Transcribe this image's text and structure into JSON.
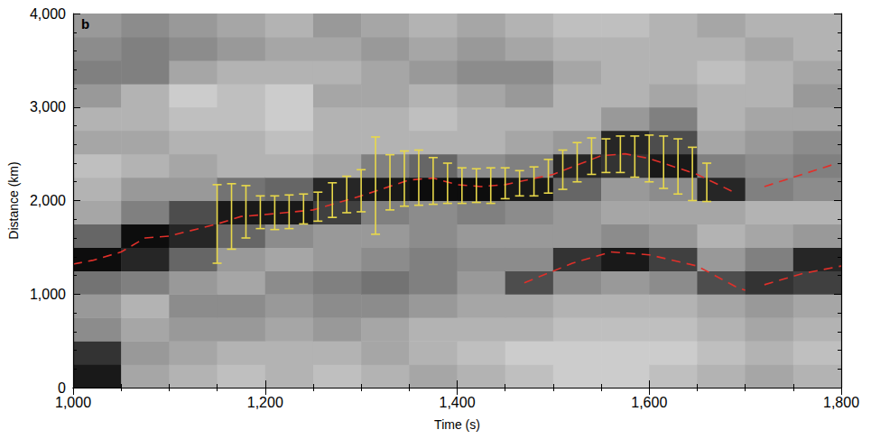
{
  "chart_data": {
    "type": "line",
    "x_label": "Time (s)",
    "y_label": "Distance (km)",
    "annotations": [
      "b"
    ],
    "xlim": [
      1000,
      1800
    ],
    "xticks": [
      1000,
      1200,
      1400,
      1600,
      1800
    ],
    "ylim": [
      0,
      4000
    ],
    "yticks": [
      0,
      1000,
      2000,
      3000,
      4000
    ],
    "grid": false,
    "background": {
      "type": "heatmap",
      "crange": [
        0,
        1
      ],
      "t_edges": [
        1000,
        1050,
        1100,
        1150,
        1200,
        1250,
        1300,
        1350,
        1400,
        1450,
        1500,
        1550,
        1600,
        1650,
        1700,
        1750,
        1800
      ],
      "d_edges": [
        0,
        250,
        500,
        750,
        1000,
        1250,
        1500,
        1750,
        2000,
        2250,
        2500,
        2750,
        3000,
        3250,
        3500,
        3750,
        4000
      ],
      "values": [
        [
          0.9,
          0.8,
          0.45,
          0.4,
          0.55,
          0.95,
          0.6,
          0.35,
          0.3,
          0.25,
          0.35,
          0.3,
          0.4,
          0.5,
          0.45,
          0.4
        ],
        [
          0.35,
          0.4,
          0.35,
          0.3,
          0.5,
          0.85,
          0.95,
          0.5,
          0.4,
          0.3,
          0.35,
          0.3,
          0.3,
          0.5,
          0.5,
          0.45
        ],
        [
          0.3,
          0.35,
          0.4,
          0.45,
          0.4,
          0.6,
          0.85,
          0.7,
          0.4,
          0.35,
          0.3,
          0.25,
          0.2,
          0.35,
          0.45,
          0.4
        ],
        [
          0.25,
          0.3,
          0.4,
          0.45,
          0.35,
          0.4,
          0.6,
          0.9,
          0.55,
          0.3,
          0.3,
          0.25,
          0.25,
          0.3,
          0.4,
          0.35
        ],
        [
          0.3,
          0.3,
          0.35,
          0.4,
          0.45,
          0.35,
          0.45,
          0.9,
          0.6,
          0.3,
          0.25,
          0.2,
          0.2,
          0.3,
          0.35,
          0.3
        ],
        [
          0.25,
          0.3,
          0.4,
          0.45,
          0.5,
          0.4,
          0.4,
          0.75,
          0.85,
          0.35,
          0.3,
          0.3,
          0.35,
          0.3,
          0.35,
          0.4
        ],
        [
          0.3,
          0.35,
          0.35,
          0.45,
          0.55,
          0.45,
          0.4,
          0.5,
          0.9,
          0.5,
          0.3,
          0.3,
          0.35,
          0.35,
          0.4,
          0.35
        ],
        [
          0.35,
          0.3,
          0.3,
          0.4,
          0.5,
          0.5,
          0.45,
          0.45,
          0.95,
          0.6,
          0.3,
          0.25,
          0.3,
          0.4,
          0.35,
          0.3
        ],
        [
          0.3,
          0.25,
          0.3,
          0.35,
          0.4,
          0.45,
          0.4,
          0.5,
          0.95,
          0.45,
          0.3,
          0.3,
          0.35,
          0.45,
          0.4,
          0.35
        ],
        [
          0.25,
          0.2,
          0.3,
          0.35,
          0.7,
          0.45,
          0.4,
          0.45,
          0.9,
          0.5,
          0.35,
          0.3,
          0.4,
          0.45,
          0.35,
          0.3
        ],
        [
          0.2,
          0.2,
          0.25,
          0.3,
          0.45,
          0.8,
          0.4,
          0.4,
          0.6,
          0.85,
          0.4,
          0.3,
          0.3,
          0.35,
          0.3,
          0.25
        ],
        [
          0.2,
          0.2,
          0.25,
          0.3,
          0.4,
          0.9,
          0.45,
          0.35,
          0.4,
          0.8,
          0.85,
          0.4,
          0.3,
          0.3,
          0.3,
          0.25
        ],
        [
          0.25,
          0.2,
          0.25,
          0.3,
          0.45,
          0.75,
          0.4,
          0.35,
          0.45,
          0.9,
          0.7,
          0.5,
          0.35,
          0.3,
          0.3,
          0.3
        ],
        [
          0.3,
          0.25,
          0.3,
          0.35,
          0.7,
          0.4,
          0.3,
          0.35,
          0.85,
          0.5,
          0.35,
          0.3,
          0.3,
          0.25,
          0.3,
          0.35
        ],
        [
          0.35,
          0.3,
          0.35,
          0.4,
          0.8,
          0.5,
          0.35,
          0.3,
          0.5,
          0.45,
          0.4,
          0.35,
          0.3,
          0.3,
          0.35,
          0.3
        ],
        [
          0.3,
          0.25,
          0.3,
          0.35,
          0.75,
          0.85,
          0.4,
          0.3,
          0.45,
          0.5,
          0.45,
          0.35,
          0.4,
          0.35,
          0.3,
          0.3
        ]
      ]
    },
    "series": [
      {
        "color": "#e0302a",
        "line_style": "dashed",
        "x": [
          1000,
          1020,
          1050,
          1075,
          1100,
          1150,
          1175,
          1200,
          1250,
          1300,
          1350,
          1375,
          1400,
          1425,
          1450,
          1500,
          1550,
          1575,
          1600,
          1650,
          1690,
          1705,
          1720,
          1790
        ],
        "values": [
          1320,
          1360,
          1450,
          1600,
          1620,
          1750,
          1830,
          1850,
          1900,
          2050,
          2220,
          2240,
          2170,
          2150,
          2170,
          2280,
          2480,
          2500,
          2450,
          2280,
          2080,
          null,
          2150,
          2380
        ]
      },
      {
        "color": "#e0302a",
        "line_style": "dashed",
        "x": [
          1470,
          1520,
          1560,
          1600,
          1650,
          1690,
          1700,
          1710,
          1720,
          1760,
          1800
        ],
        "values": [
          1120,
          1330,
          1450,
          1420,
          1300,
          1080,
          1040,
          null,
          1100,
          1220,
          1300
        ]
      }
    ],
    "errorbars": {
      "color": "#e8d84a",
      "x": [
        1150,
        1165,
        1180,
        1195,
        1210,
        1225,
        1240,
        1255,
        1270,
        1285,
        1300,
        1315,
        1330,
        1345,
        1360,
        1375,
        1390,
        1405,
        1420,
        1435,
        1450,
        1465,
        1480,
        1495,
        1510,
        1525,
        1540,
        1555,
        1570,
        1585,
        1600,
        1615,
        1630,
        1645,
        1660
      ],
      "low": [
        1330,
        1480,
        1600,
        1700,
        1690,
        1700,
        1750,
        1780,
        1820,
        1870,
        1880,
        1640,
        1900,
        1940,
        1950,
        1960,
        1970,
        1970,
        1980,
        1970,
        2020,
        2050,
        2050,
        2080,
        2120,
        2200,
        2280,
        2300,
        2300,
        2250,
        2200,
        2130,
        2070,
        2000,
        1990
      ],
      "high": [
        2170,
        2180,
        2160,
        2050,
        2050,
        2060,
        2070,
        2090,
        2190,
        2260,
        2330,
        2680,
        2490,
        2530,
        2540,
        2460,
        2400,
        2350,
        2340,
        2350,
        2350,
        2320,
        2360,
        2440,
        2540,
        2620,
        2670,
        2660,
        2690,
        2690,
        2700,
        2690,
        2660,
        2570,
        2400
      ]
    }
  }
}
